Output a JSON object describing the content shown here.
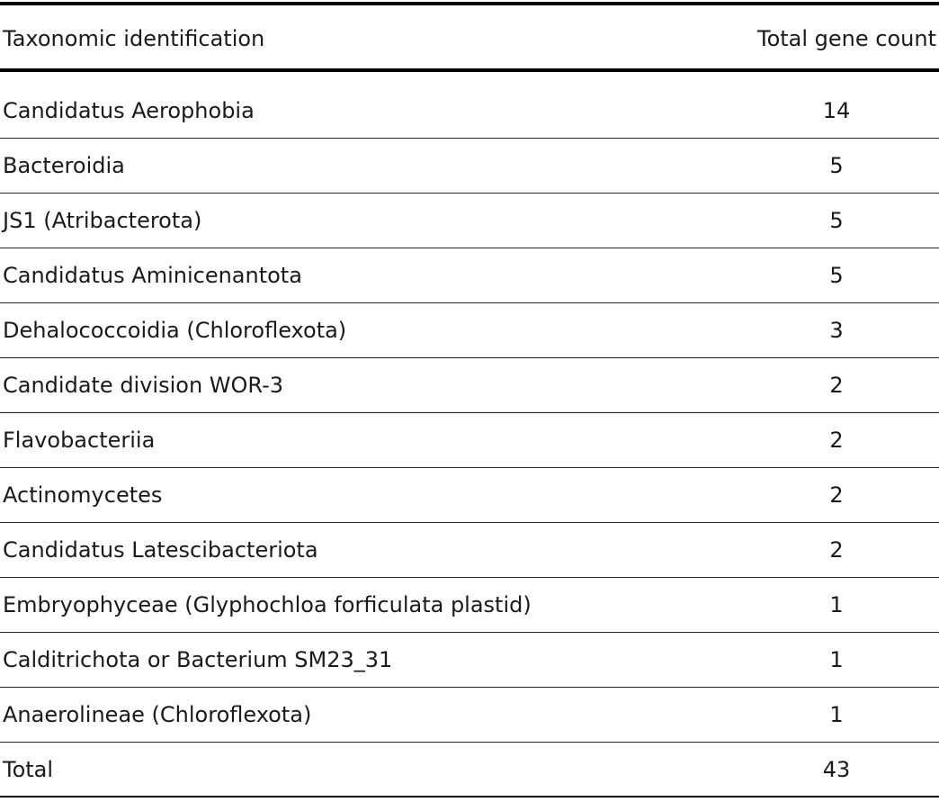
{
  "table": {
    "headers": {
      "taxon": "Taxonomic identification",
      "count": "Total gene count"
    },
    "rows": [
      {
        "taxon": "Candidatus Aerophobia",
        "count": "14"
      },
      {
        "taxon": "Bacteroidia",
        "count": "5"
      },
      {
        "taxon": "JS1 (Atribacterota)",
        "count": "5"
      },
      {
        "taxon": "Candidatus Aminicenantota",
        "count": "5"
      },
      {
        "taxon": "Dehalococcoidia (Chloroflexota)",
        "count": "3"
      },
      {
        "taxon": "Candidate division WOR-3",
        "count": "2"
      },
      {
        "taxon": "Flavobacteriia",
        "count": "2"
      },
      {
        "taxon": "Actinomycetes",
        "count": "2"
      },
      {
        "taxon": "Candidatus Latescibacteriota",
        "count": "2"
      },
      {
        "taxon": "Embryophyceae (Glyphochloa forficulata plastid)",
        "count": "1"
      },
      {
        "taxon": "Calditrichota or Bacterium SM23_31",
        "count": "1"
      },
      {
        "taxon": "Anaerolineae (Chloroflexota)",
        "count": "1"
      },
      {
        "taxon": "Total",
        "count": "43"
      }
    ]
  }
}
